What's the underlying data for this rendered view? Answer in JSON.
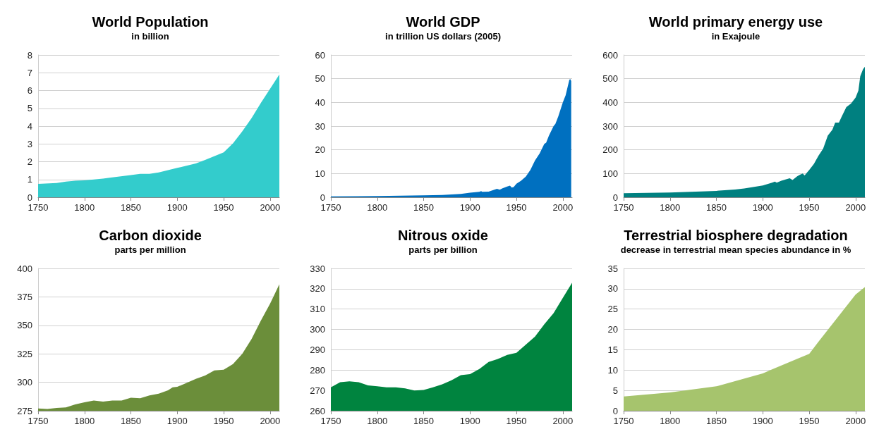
{
  "chart_data": [
    {
      "type": "area",
      "title": "World Population",
      "subtitle": "in billion",
      "color": "#33cccc",
      "grid": "y",
      "xlim": [
        1750,
        2010
      ],
      "xticks": [
        1750,
        1800,
        1850,
        1900,
        1950,
        2000
      ],
      "ylim": [
        0,
        8
      ],
      "yticks": [
        0,
        1,
        2,
        3,
        4,
        5,
        6,
        7,
        8
      ],
      "x": [
        1750,
        1770,
        1780,
        1790,
        1800,
        1820,
        1830,
        1850,
        1860,
        1870,
        1880,
        1900,
        1920,
        1930,
        1950,
        1960,
        1970,
        1980,
        1990,
        2000,
        2010
      ],
      "values": [
        0.75,
        0.8,
        0.88,
        0.93,
        0.95,
        1.05,
        1.12,
        1.25,
        1.32,
        1.32,
        1.4,
        1.65,
        1.9,
        2.1,
        2.52,
        3.03,
        3.7,
        4.45,
        5.3,
        6.1,
        6.9
      ]
    },
    {
      "type": "area",
      "title": "World GDP",
      "subtitle": "in trillion US dollars (2005)",
      "color": "#0070c0",
      "grid": "y",
      "xlim": [
        1750,
        2010
      ],
      "xticks": [
        1750,
        1800,
        1850,
        1900,
        1950,
        2000
      ],
      "ylim": [
        0,
        60
      ],
      "yticks": [
        0,
        10,
        20,
        30,
        40,
        50,
        60
      ],
      "x": [
        1750,
        1800,
        1850,
        1870,
        1890,
        1900,
        1910,
        1912,
        1913,
        1920,
        1929,
        1932,
        1935,
        1940,
        1943,
        1945,
        1947,
        1950,
        1955,
        1960,
        1965,
        1970,
        1975,
        1980,
        1982,
        1985,
        1990,
        1992,
        1995,
        2000,
        2003,
        2007,
        2008,
        2009
      ],
      "values": [
        0.4,
        0.5,
        0.8,
        1.0,
        1.4,
        1.9,
        2.3,
        2.6,
        2.3,
        2.4,
        3.6,
        3.2,
        3.8,
        4.5,
        4.9,
        4.1,
        4.3,
        5.7,
        7.0,
        8.7,
        11.5,
        15.5,
        18.5,
        22.5,
        23,
        26,
        30,
        31,
        34,
        40,
        43,
        49.5,
        49.8,
        49
      ]
    },
    {
      "type": "area",
      "title": "World primary energy use",
      "subtitle": "in Exajoule",
      "color": "#008080",
      "grid": "y",
      "xlim": [
        1750,
        2010
      ],
      "xticks": [
        1750,
        1800,
        1850,
        1900,
        1950,
        2000
      ],
      "ylim": [
        0,
        600
      ],
      "yticks": [
        0,
        100,
        200,
        300,
        400,
        500,
        600
      ],
      "x": [
        1750,
        1800,
        1850,
        1870,
        1880,
        1900,
        1910,
        1913,
        1915,
        1920,
        1929,
        1932,
        1937,
        1940,
        1943,
        1945,
        1950,
        1955,
        1960,
        1965,
        1970,
        1975,
        1978,
        1982,
        1985,
        1990,
        1995,
        2000,
        2003,
        2005,
        2008,
        2010
      ],
      "values": [
        17,
        20,
        27,
        33,
        37,
        50,
        62,
        66,
        62,
        70,
        80,
        73,
        88,
        95,
        100,
        92,
        115,
        140,
        175,
        205,
        260,
        285,
        315,
        315,
        340,
        380,
        395,
        420,
        450,
        510,
        540,
        550
      ]
    },
    {
      "type": "area",
      "title": "Carbon dioxide",
      "subtitle": "parts per million",
      "color": "#6b8e3a",
      "grid": "y",
      "xlim": [
        1750,
        2010
      ],
      "xticks": [
        1750,
        1800,
        1850,
        1900,
        1950,
        2000
      ],
      "ylim": [
        275,
        400
      ],
      "yticks": [
        275,
        300,
        325,
        350,
        375,
        400
      ],
      "x": [
        1750,
        1760,
        1770,
        1780,
        1790,
        1800,
        1810,
        1820,
        1830,
        1840,
        1850,
        1860,
        1870,
        1880,
        1890,
        1895,
        1900,
        1910,
        1920,
        1930,
        1940,
        1950,
        1960,
        1970,
        1980,
        1990,
        2000,
        2010
      ],
      "values": [
        277,
        276.5,
        277.5,
        278,
        280.5,
        282.5,
        284,
        283,
        284,
        284,
        286.5,
        286,
        288.5,
        290,
        293,
        295.5,
        296,
        299.5,
        303,
        306,
        310.5,
        311,
        316,
        325,
        338,
        354,
        369,
        386
      ]
    },
    {
      "type": "area",
      "title": "Nitrous oxide",
      "subtitle": "parts per billion",
      "color": "#00843f",
      "grid": "y",
      "xlim": [
        1750,
        2010
      ],
      "xticks": [
        1750,
        1800,
        1850,
        1900,
        1950,
        2000
      ],
      "ylim": [
        260,
        330
      ],
      "yticks": [
        260,
        270,
        280,
        290,
        300,
        310,
        320,
        330
      ],
      "x": [
        1750,
        1760,
        1770,
        1780,
        1790,
        1800,
        1810,
        1820,
        1830,
        1840,
        1850,
        1860,
        1870,
        1880,
        1890,
        1900,
        1910,
        1920,
        1930,
        1940,
        1950,
        1960,
        1970,
        1980,
        1990,
        2000,
        2010
      ],
      "values": [
        271.5,
        274,
        274.5,
        274,
        272.5,
        272,
        271.5,
        271.5,
        271,
        270,
        270.2,
        271.5,
        273,
        275,
        277.5,
        278,
        280.5,
        284,
        285.5,
        287.5,
        288.5,
        292.5,
        296.5,
        302.5,
        308,
        315.5,
        323
      ]
    },
    {
      "type": "area",
      "title": "Terrestrial biosphere degradation",
      "subtitle": "decrease in terrestrial mean species abundance in %",
      "color": "#a6c46d",
      "grid": "y",
      "xlim": [
        1750,
        2010
      ],
      "xticks": [
        1750,
        1800,
        1850,
        1900,
        1950,
        2000
      ],
      "ylim": [
        0,
        35
      ],
      "yticks": [
        0,
        5,
        10,
        15,
        20,
        25,
        30,
        35
      ],
      "x": [
        1750,
        1800,
        1850,
        1900,
        1910,
        1950,
        1960,
        2000,
        2010
      ],
      "values": [
        3.5,
        4.5,
        6,
        9.2,
        10.2,
        14,
        17,
        28.6,
        30.4
      ]
    }
  ]
}
